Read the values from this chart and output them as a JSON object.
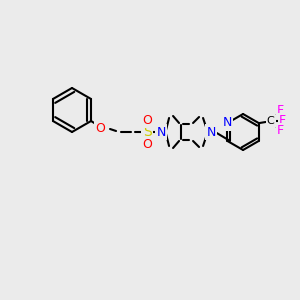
{
  "bg_color": "#ebebeb",
  "bond_color": "#000000",
  "bond_width": 1.5,
  "atom_colors": {
    "N": "#0000ff",
    "O": "#ff0000",
    "S": "#cccc00",
    "F": "#ff00ff",
    "C": "#000000"
  },
  "font_size": 9,
  "font_size_small": 8
}
